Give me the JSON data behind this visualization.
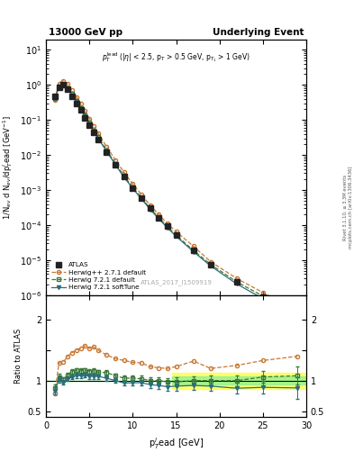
{
  "title_left": "13000 GeV pp",
  "title_right": "Underlying Event",
  "watermark": "ATLAS_2017_I1509919",
  "ylabel_main": "1/N$_{ev}$ d N$_{ev}$/dp$_T^l$ead [GeV$^{-1}$]",
  "ylabel_ratio": "Ratio to ATLAS",
  "xlabel": "p$_T^l$ead [GeV]",
  "xlim": [
    0,
    30
  ],
  "ylim_main_log": [
    1e-06,
    20
  ],
  "ylim_ratio": [
    0.4,
    2.4
  ],
  "atlas_x": [
    1.0,
    1.5,
    2.0,
    2.5,
    3.0,
    3.5,
    4.0,
    4.5,
    5.0,
    5.5,
    6.0,
    7.0,
    8.0,
    9.0,
    10.0,
    11.0,
    12.0,
    13.0,
    14.0,
    15.0,
    17.0,
    19.0,
    22.0,
    25.0,
    29.0
  ],
  "atlas_y": [
    0.48,
    0.85,
    1.0,
    0.75,
    0.48,
    0.3,
    0.19,
    0.115,
    0.072,
    0.044,
    0.028,
    0.012,
    0.0053,
    0.0024,
    0.00115,
    0.00058,
    0.0003,
    0.000165,
    9.2e-05,
    5.3e-05,
    1.9e-05,
    7.5e-06,
    2.4e-06,
    9e-07,
    2.5e-07
  ],
  "atlas_yerr": [
    0.04,
    0.06,
    0.07,
    0.05,
    0.03,
    0.02,
    0.013,
    0.008,
    0.005,
    0.003,
    0.002,
    0.0008,
    0.0003,
    0.00015,
    7e-05,
    4e-05,
    2e-05,
    1.1e-05,
    6e-06,
    4e-06,
    1.5e-06,
    7e-07,
    2.5e-07,
    1e-07,
    3e-08
  ],
  "herwig_pp_x": [
    1.0,
    1.5,
    2.0,
    2.5,
    3.0,
    3.5,
    4.0,
    4.5,
    5.0,
    5.5,
    6.0,
    7.0,
    8.0,
    9.0,
    10.0,
    11.0,
    12.0,
    13.0,
    14.0,
    15.0,
    17.0,
    19.0,
    22.0,
    25.0,
    29.0
  ],
  "herwig_pp_y": [
    0.38,
    1.1,
    1.3,
    1.05,
    0.7,
    0.45,
    0.29,
    0.18,
    0.11,
    0.068,
    0.042,
    0.017,
    0.0072,
    0.0032,
    0.0015,
    0.00075,
    0.00037,
    0.0002,
    0.00011,
    6.5e-05,
    2.5e-05,
    9e-06,
    3e-06,
    1.2e-06,
    3.5e-07
  ],
  "herwig721_x": [
    1.0,
    1.5,
    2.0,
    2.5,
    3.0,
    3.5,
    4.0,
    4.5,
    5.0,
    5.5,
    6.0,
    7.0,
    8.0,
    9.0,
    10.0,
    11.0,
    12.0,
    13.0,
    14.0,
    15.0,
    17.0,
    19.0,
    22.0,
    25.0,
    29.0
  ],
  "herwig721_y": [
    0.42,
    0.9,
    1.02,
    0.82,
    0.55,
    0.35,
    0.22,
    0.135,
    0.083,
    0.051,
    0.032,
    0.0135,
    0.0057,
    0.0025,
    0.0012,
    0.0006,
    0.0003,
    0.000165,
    9e-05,
    5.2e-05,
    1.9e-05,
    7.5e-06,
    2.4e-06,
    9.5e-07,
    2.7e-07
  ],
  "herwig721soft_x": [
    1.0,
    1.5,
    2.0,
    2.5,
    3.0,
    3.5,
    4.0,
    4.5,
    5.0,
    5.5,
    6.0,
    7.0,
    8.0,
    9.0,
    10.0,
    11.0,
    12.0,
    13.0,
    14.0,
    15.0,
    17.0,
    19.0,
    22.0,
    25.0,
    29.0
  ],
  "herwig721soft_y": [
    0.4,
    0.87,
    0.97,
    0.77,
    0.51,
    0.325,
    0.205,
    0.125,
    0.077,
    0.047,
    0.03,
    0.0125,
    0.0053,
    0.0023,
    0.00111,
    0.00056,
    0.00028,
    0.000152,
    8.3e-05,
    4.8e-05,
    1.75e-05,
    6.8e-06,
    2.1e-06,
    8e-07,
    2.2e-07
  ],
  "ratio_herwig_pp": [
    0.79,
    1.29,
    1.3,
    1.4,
    1.46,
    1.5,
    1.53,
    1.57,
    1.53,
    1.55,
    1.5,
    1.42,
    1.36,
    1.33,
    1.3,
    1.29,
    1.23,
    1.21,
    1.2,
    1.23,
    1.32,
    1.2,
    1.25,
    1.33,
    1.4
  ],
  "ratio_herwig721": [
    0.88,
    1.06,
    1.02,
    1.09,
    1.15,
    1.17,
    1.16,
    1.17,
    1.15,
    1.16,
    1.14,
    1.13,
    1.08,
    1.04,
    1.04,
    1.03,
    1.0,
    1.0,
    0.98,
    0.98,
    1.0,
    1.0,
    1.0,
    1.06,
    1.08
  ],
  "ratio_herwig721soft": [
    0.83,
    1.02,
    0.97,
    1.03,
    1.06,
    1.08,
    1.08,
    1.09,
    1.07,
    1.07,
    1.07,
    1.04,
    1.0,
    0.96,
    0.965,
    0.965,
    0.935,
    0.92,
    0.9,
    0.91,
    0.92,
    0.91,
    0.875,
    0.89,
    0.88
  ],
  "ratio_h721soft_err": [
    0.06,
    0.05,
    0.04,
    0.04,
    0.04,
    0.04,
    0.04,
    0.04,
    0.04,
    0.04,
    0.04,
    0.04,
    0.04,
    0.04,
    0.05,
    0.05,
    0.05,
    0.06,
    0.06,
    0.07,
    0.07,
    0.08,
    0.09,
    0.1,
    0.18
  ],
  "ratio_h721_err": [
    0.06,
    0.05,
    0.04,
    0.04,
    0.04,
    0.04,
    0.04,
    0.04,
    0.04,
    0.04,
    0.04,
    0.04,
    0.04,
    0.04,
    0.05,
    0.05,
    0.05,
    0.06,
    0.06,
    0.07,
    0.07,
    0.08,
    0.09,
    0.1,
    0.15
  ],
  "herwig_pp_color": "#c87832",
  "herwig721_color": "#3a7a3a",
  "herwig721soft_color": "#2a6e7a",
  "atlas_color": "#222222",
  "band_yellow": [
    0.87,
    1.13
  ],
  "band_green": [
    0.93,
    1.07
  ],
  "band_x_start": 14.5,
  "side_text1": "Rivet 3.1.10, ≥ 3.3M events",
  "side_text2": "mcplots.cern.ch [arXiv:1306.3436]"
}
